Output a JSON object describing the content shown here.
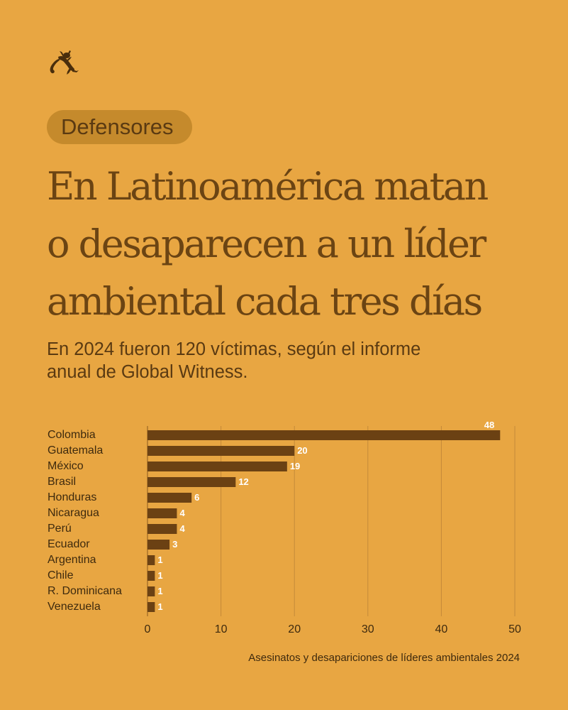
{
  "brand": {
    "logo_icon": "gecko-icon"
  },
  "tag": {
    "label": "Defensores"
  },
  "headline": {
    "line1": "En Latinoamérica matan",
    "line2": "o desaparecen a un líder",
    "line3": "ambiental cada tres días"
  },
  "subtitle": {
    "line1": "En 2024 fueron 120 víctimas, según el informe",
    "line2": "anual de Global Witness."
  },
  "colors": {
    "background": "#E8A642",
    "bar": "#6B4113",
    "text": "#5A3A12",
    "tag_bg": "#C58A2C",
    "gridline": "#C48A3A"
  },
  "chart_data": {
    "type": "bar",
    "orientation": "horizontal",
    "categories": [
      "Colombia",
      "Guatemala",
      "México",
      "Brasil",
      "Honduras",
      "Nicaragua",
      "Perú",
      "Ecuador",
      "Argentina",
      "Chile",
      "R. Dominicana",
      "Venezuela"
    ],
    "values": [
      48,
      20,
      19,
      12,
      6,
      4,
      4,
      3,
      1,
      1,
      1,
      1
    ],
    "xlabel": "Asesinatos y desapariciones de líderes ambientales 2024",
    "xlim": [
      0,
      50
    ],
    "xticks": [
      0,
      10,
      20,
      30,
      40,
      50
    ],
    "grid": true
  }
}
